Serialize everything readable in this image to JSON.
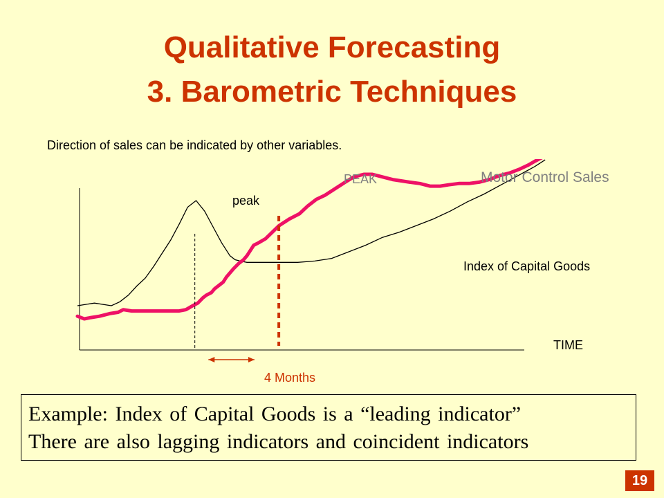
{
  "slide": {
    "title_line1": "Qualitative Forecasting",
    "title_line2": "3. Barometric Techniques",
    "subtitle": "Direction of sales can be indicated by other variables.",
    "example_line1": "Example:  Index of Capital Goods is a “leading indicator”",
    "example_line2": "There are also lagging indicators and coincident indicators",
    "page_number": "19"
  },
  "colors": {
    "background": "#FFFFCC",
    "title": "#CC3300",
    "sales_line": "#EE1166",
    "index_line": "#000000",
    "peak_marker": "#CC3300",
    "label_gray": "#808080"
  },
  "chart_data": {
    "type": "line",
    "title": "",
    "xlabel": "TIME",
    "ylabel": "",
    "grid": false,
    "legend": "none",
    "series": [
      {
        "name": "Motor Control Sales",
        "x": [
          0,
          4,
          8,
          13,
          19,
          24,
          27,
          32,
          38,
          45,
          50,
          55,
          60,
          64,
          68,
          71,
          74,
          76,
          79,
          81,
          84,
          86,
          88,
          90,
          92,
          95,
          98,
          100,
          102,
          104,
          107,
          111,
          115,
          119,
          125,
          131,
          136,
          141,
          146,
          152,
          158,
          163,
          169,
          174,
          180,
          186,
          191,
          196,
          202,
          208,
          214,
          219,
          225,
          231,
          237,
          243,
          249,
          255,
          261,
          266,
          270,
          273,
          276
        ],
        "y": [
          12,
          10,
          11,
          12,
          14,
          15,
          17,
          16,
          16,
          16,
          16,
          16,
          16,
          17,
          20,
          22,
          26,
          28,
          30,
          33,
          36,
          38,
          42,
          45,
          48,
          52,
          55,
          58,
          62,
          66,
          68,
          71,
          76,
          81,
          86,
          90,
          96,
          101,
          104,
          109,
          114,
          118,
          120,
          120,
          118,
          116,
          115,
          114,
          113,
          111,
          111,
          112,
          113,
          113,
          114,
          116,
          119,
          121,
          124,
          127,
          130,
          132,
          134
        ]
      },
      {
        "name": "Index of Capital Goods",
        "x": [
          0,
          10,
          20,
          25,
          30,
          35,
          40,
          45,
          50,
          55,
          60,
          65,
          70,
          75,
          80,
          85,
          90,
          93,
          96,
          100,
          104,
          108,
          112,
          116,
          120,
          130,
          140,
          150,
          160,
          170,
          180,
          190,
          200,
          210,
          220,
          230,
          240,
          250,
          260,
          270,
          276
        ],
        "y": [
          20,
          22,
          20,
          23,
          28,
          35,
          41,
          50,
          60,
          70,
          82,
          95,
          100,
          92,
          80,
          68,
          58,
          55,
          54,
          53,
          53,
          53,
          53,
          53,
          53,
          53,
          54,
          56,
          61,
          66,
          72,
          76,
          81,
          86,
          92,
          99,
          105,
          112,
          119,
          126,
          131
        ]
      }
    ],
    "annotations": [
      {
        "text": "peak",
        "series": "Index of Capital Goods",
        "x": 66
      },
      {
        "text": "PEAK",
        "series": "Motor Control Sales",
        "x": 118
      },
      {
        "text": "4 Months",
        "x_from": 74,
        "x_to": 102
      },
      {
        "text": "Index of Capital Goods"
      },
      {
        "text": "Motor Control Sales"
      },
      {
        "text": "TIME"
      }
    ]
  }
}
